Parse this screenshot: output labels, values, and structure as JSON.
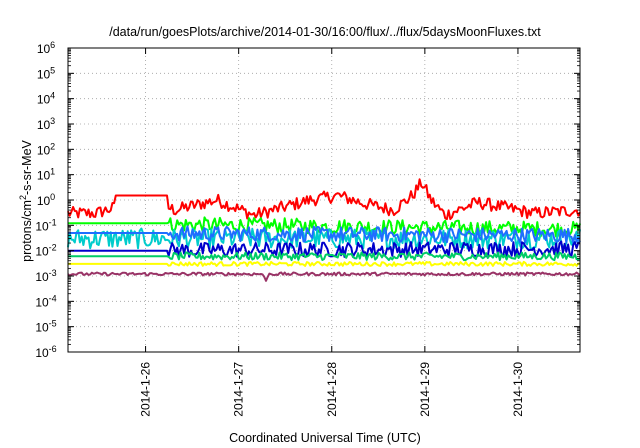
{
  "chart_data": {
    "type": "line",
    "title": "/data/run/goesPlots/archive/2014-01-30/16:00/flux/../flux/5daysMoonFluxes.txt",
    "xlabel": "Coordinated Universal Time (UTC)",
    "ylabel": {
      "pre": "protons/cm",
      "sup": "2",
      "post": "-s-sr-MeV"
    },
    "x_unit": "days (UTC)",
    "xlim": [
      "2014-01-25 04:00",
      "2014-01-30 16:00"
    ],
    "ylim": [
      1e-06,
      1000000.0
    ],
    "yscale": "log",
    "grid": true,
    "legend": "none",
    "xticks": [
      {
        "x": "2014-01-26 00:00",
        "label": "2014-1-26"
      },
      {
        "x": "2014-01-27 00:00",
        "label": "2014-1-27"
      },
      {
        "x": "2014-01-28 00:00",
        "label": "2014-1-28"
      },
      {
        "x": "2014-01-29 00:00",
        "label": "2014-1-29"
      },
      {
        "x": "2014-01-30 00:00",
        "label": "2014-1-30"
      }
    ],
    "yticks": [
      {
        "base": "10",
        "exp": "-6"
      },
      {
        "base": "10",
        "exp": "-5"
      },
      {
        "base": "10",
        "exp": "-4"
      },
      {
        "base": "10",
        "exp": "-3"
      },
      {
        "base": "10",
        "exp": "-2"
      },
      {
        "base": "10",
        "exp": "-1"
      },
      {
        "base": "10",
        "exp": "0"
      },
      {
        "base": "10",
        "exp": "1"
      },
      {
        "base": "10",
        "exp": "2"
      },
      {
        "base": "10",
        "exp": "3"
      },
      {
        "base": "10",
        "exp": "4"
      },
      {
        "base": "10",
        "exp": "5"
      },
      {
        "base": "10",
        "exp": "6"
      }
    ],
    "series": [
      {
        "color": "#ff0000",
        "noise": 0.25,
        "step": {
          "from": 0.5,
          "to": 1.08,
          "value": 1.5
        },
        "points": [
          [
            0,
            0.3
          ],
          [
            0.3,
            0.3
          ],
          [
            0.5,
            0.5
          ],
          [
            1.08,
            0.5
          ],
          [
            1.15,
            0.4
          ],
          [
            1.6,
            1.0
          ],
          [
            2.0,
            0.25
          ],
          [
            2.3,
            0.5
          ],
          [
            2.6,
            1.0
          ],
          [
            2.9,
            1.5
          ],
          [
            3.2,
            0.7
          ],
          [
            3.5,
            0.4
          ],
          [
            3.7,
            1.5
          ],
          [
            3.8,
            5.0
          ],
          [
            3.9,
            1.0
          ],
          [
            4.05,
            0.25
          ],
          [
            4.4,
            0.8
          ],
          [
            4.7,
            0.5
          ],
          [
            5.0,
            0.3
          ],
          [
            5.5,
            0.4
          ]
        ]
      },
      {
        "color": "#00ff00",
        "noise": 0.3,
        "step": {
          "from": 0.0,
          "to": 1.08,
          "value": 0.12
        },
        "points": [
          [
            0,
            0.12
          ],
          [
            5.5,
            0.07
          ]
        ]
      },
      {
        "color": "#00cccc",
        "noise": 0.4,
        "points": [
          [
            0,
            0.03
          ],
          [
            5.5,
            0.03
          ]
        ]
      },
      {
        "color": "#1e6eff",
        "noise": 0.3,
        "step": {
          "from": 0.0,
          "to": 1.08,
          "value": 0.05
        },
        "points": [
          [
            0,
            0.05
          ],
          [
            5.5,
            0.04
          ]
        ]
      },
      {
        "color": "#0000cc",
        "noise": 0.3,
        "step": {
          "from": 0.0,
          "to": 1.08,
          "value": 0.01
        },
        "points": [
          [
            0,
            0.01
          ],
          [
            5.5,
            0.012
          ]
        ]
      },
      {
        "color": "#00cc66",
        "noise": 0.15,
        "step": {
          "from": 0.0,
          "to": 1.08,
          "value": 0.006
        },
        "points": [
          [
            0,
            0.006
          ],
          [
            5.5,
            0.006
          ]
        ]
      },
      {
        "color": "#ffff00",
        "noise": 0.08,
        "step": {
          "from": 0.0,
          "to": 1.08,
          "value": 0.003
        },
        "points": [
          [
            0,
            0.003
          ],
          [
            5.5,
            0.003
          ]
        ]
      },
      {
        "color": "#993366",
        "noise": 0.06,
        "points": [
          [
            0,
            0.0012
          ],
          [
            2.1,
            0.0012
          ],
          [
            2.12,
            0.0005
          ],
          [
            2.15,
            0.0012
          ],
          [
            5.5,
            0.0012
          ]
        ]
      }
    ]
  }
}
